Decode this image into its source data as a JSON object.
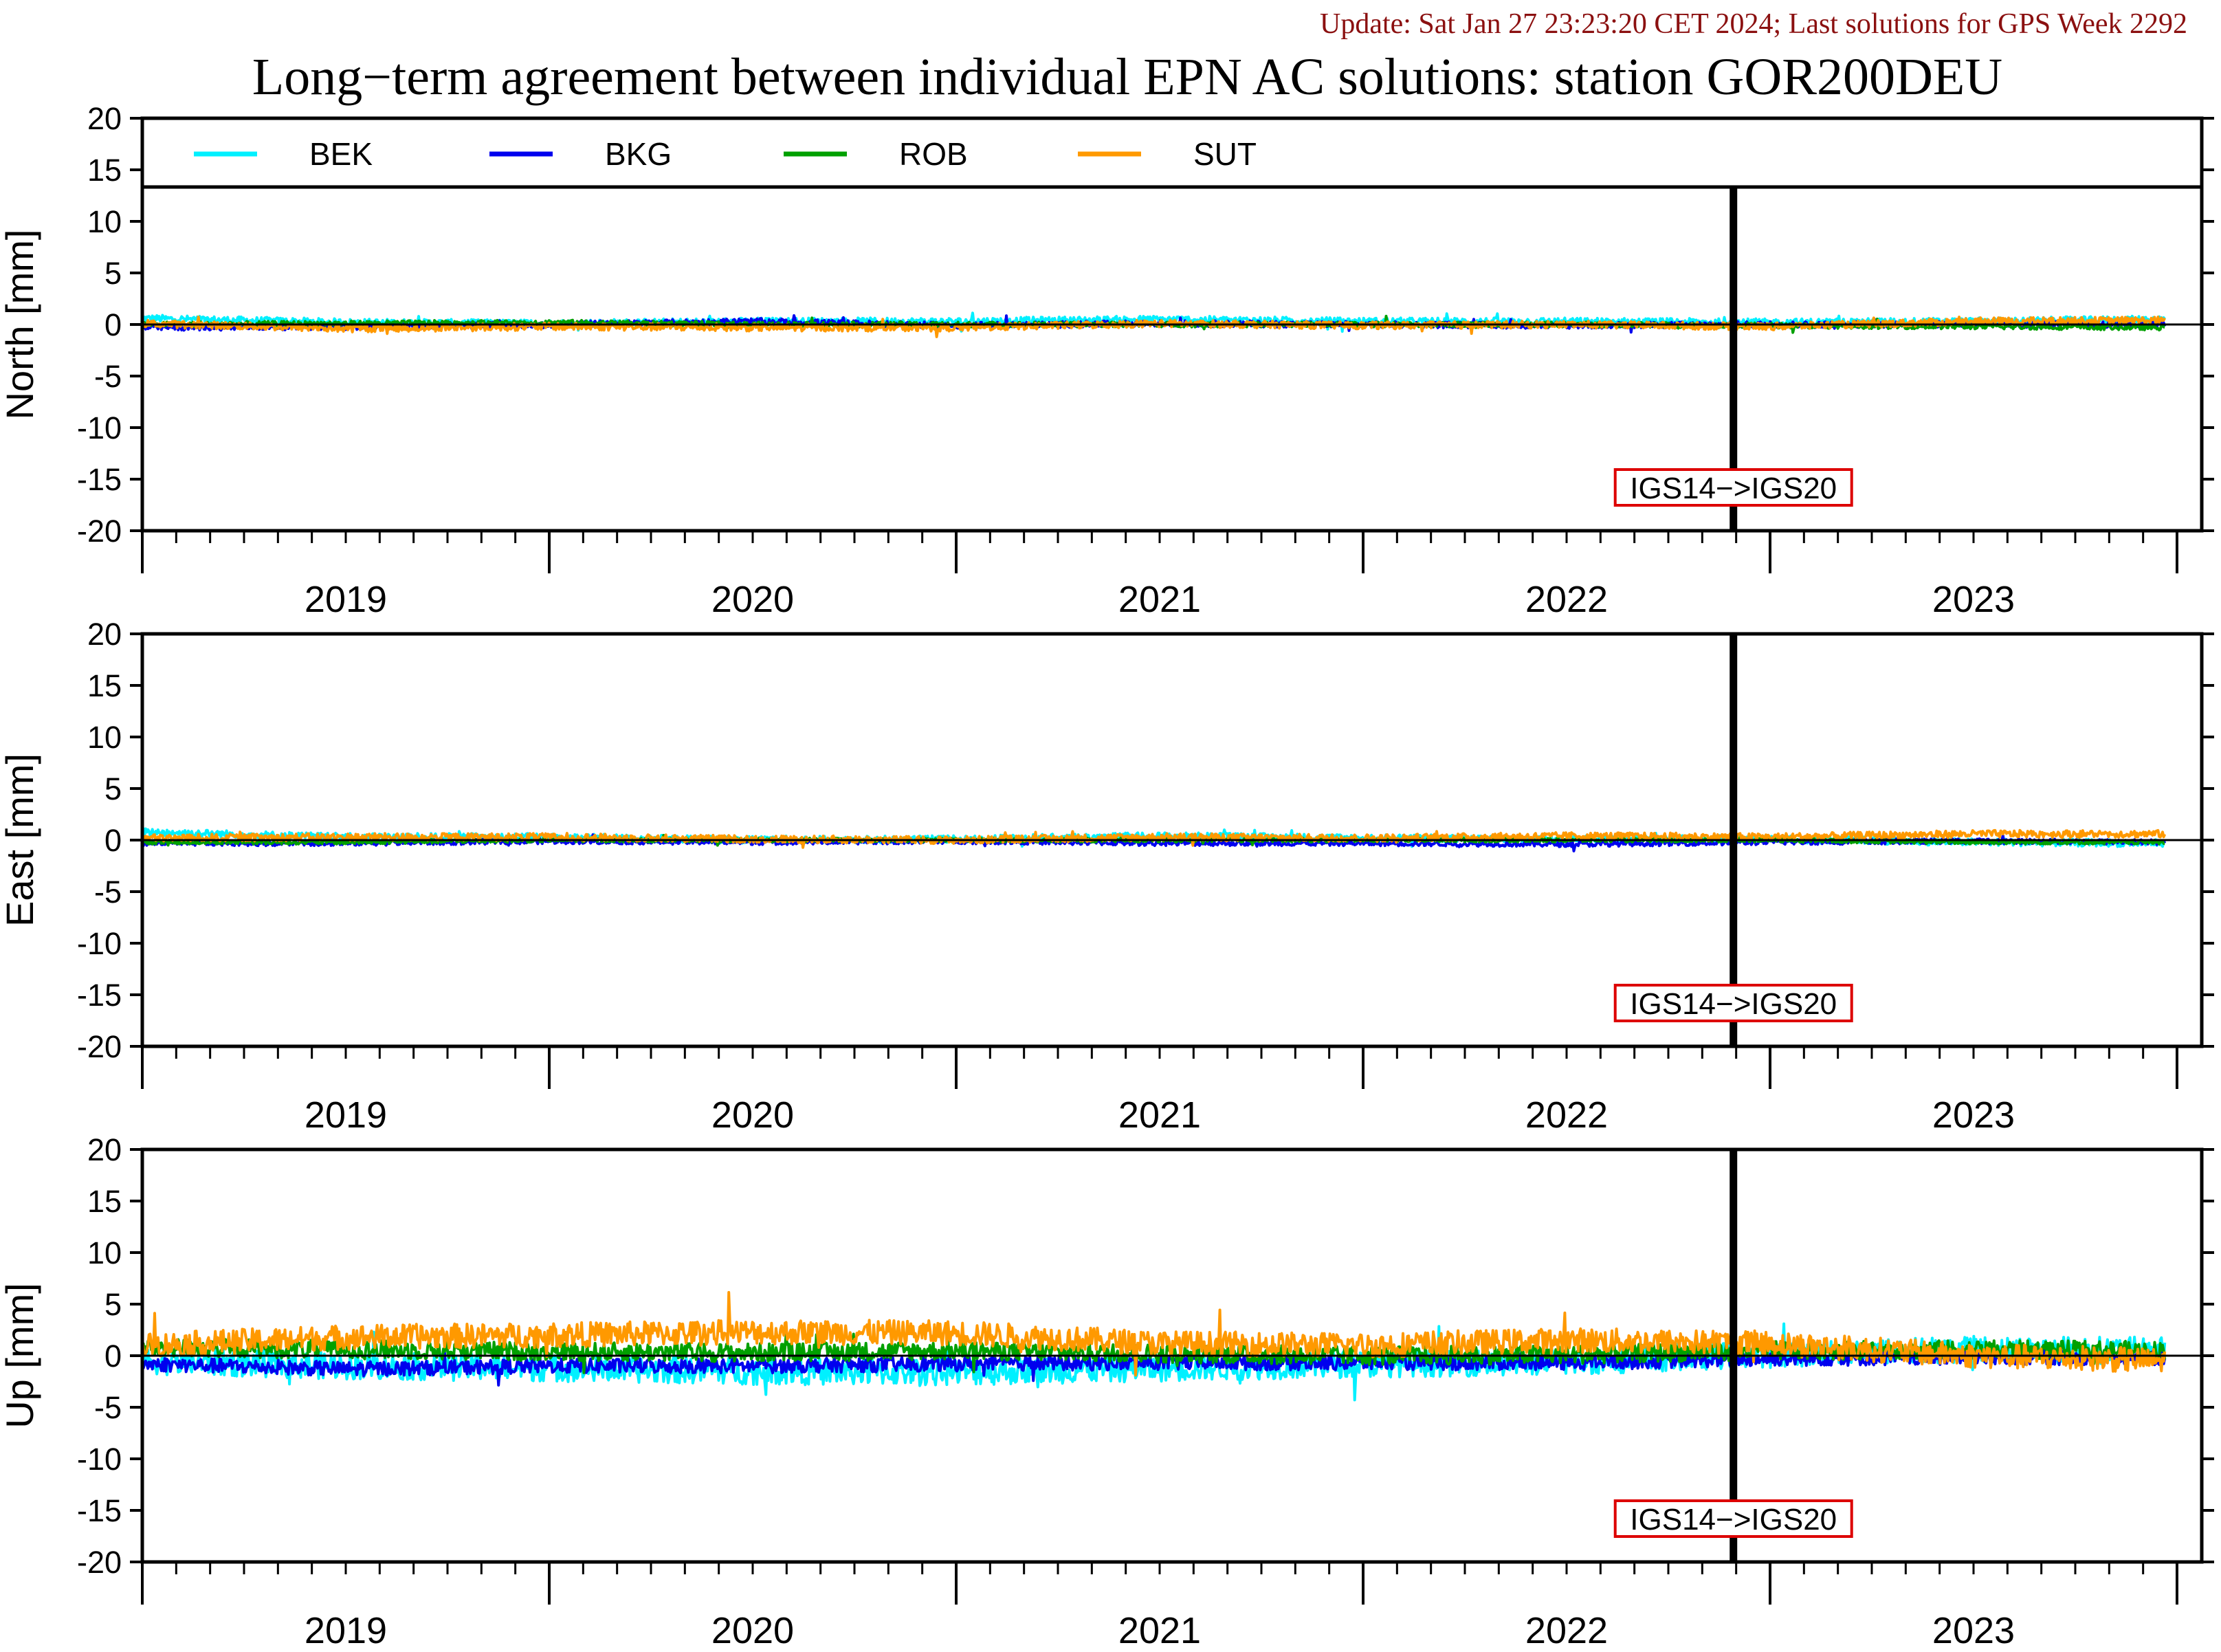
{
  "update_text": "Update: Sat Jan 27 23:23:20 CET 2024; Last solutions for GPS Week 2292",
  "chart_data": {
    "type": "line",
    "title": "Long−term agreement between individual EPN AC solutions: station GOR200DEU",
    "x_range": [
      2018.5,
      2023.5
    ],
    "x_tick_labels": [
      "2019",
      "2020",
      "2021",
      "2022",
      "2023"
    ],
    "grid": false,
    "legend_placement": "top (inside first panel)",
    "series": [
      {
        "name": "BEK",
        "color": "#00f0ff"
      },
      {
        "name": "BKG",
        "color": "#0000ee"
      },
      {
        "name": "ROB",
        "color": "#00a000"
      },
      {
        "name": "SUT",
        "color": "#ff9900"
      }
    ],
    "event": {
      "label": "IGS14−>IGS20",
      "x": 2022.41,
      "box_color": "#dd0000"
    },
    "panels": [
      {
        "ylabel": "North [mm]",
        "ylim": [
          -20,
          20
        ],
        "y_ticks": [
          20,
          15,
          10,
          5,
          0,
          -5,
          -10,
          -15,
          -20
        ],
        "series_values": {
          "BEK": {
            "x": [
              2018.5,
              2019.0,
              2019.5,
              2020.0,
              2020.5,
              2021.0,
              2021.5,
              2022.0,
              2022.5,
              2023.0,
              2023.47
            ],
            "y": [
              0.6,
              0.2,
              0.1,
              0.3,
              0.3,
              0.5,
              0.3,
              0.3,
              0.2,
              0.3,
              0.5
            ]
          },
          "BKG": {
            "x": [
              2018.5,
              2019.0,
              2019.5,
              2020.0,
              2020.5,
              2021.0,
              2021.5,
              2022.0,
              2022.5,
              2023.0,
              2023.47
            ],
            "y": [
              -0.3,
              -0.2,
              0.0,
              0.3,
              -0.1,
              0.1,
              0.0,
              -0.1,
              0.0,
              0.0,
              0.0
            ]
          },
          "ROB": {
            "x": [
              2018.5,
              2019.0,
              2019.5,
              2020.0,
              2020.5,
              2021.0,
              2021.5,
              2022.0,
              2022.5,
              2023.0,
              2023.47
            ],
            "y": [
              0.0,
              0.1,
              0.2,
              0.0,
              0.0,
              0.0,
              0.0,
              0.0,
              -0.1,
              -0.2,
              -0.3
            ]
          },
          "SUT": {
            "x": [
              2018.5,
              2019.0,
              2019.5,
              2020.0,
              2020.5,
              2021.0,
              2021.5,
              2022.0,
              2022.5,
              2023.0,
              2023.47
            ],
            "y": [
              0.1,
              -0.4,
              -0.2,
              -0.3,
              -0.3,
              0.1,
              -0.1,
              0.0,
              -0.2,
              0.3,
              0.4
            ]
          }
        }
      },
      {
        "ylabel": "East [mm]",
        "ylim": [
          -20,
          20
        ],
        "y_ticks": [
          20,
          15,
          10,
          5,
          0,
          -5,
          -10,
          -15,
          -20
        ],
        "series_values": {
          "BEK": {
            "x": [
              2018.5,
              2019.0,
              2019.5,
              2020.0,
              2020.5,
              2021.0,
              2021.5,
              2022.0,
              2022.5,
              2023.0,
              2023.47
            ],
            "y": [
              0.8,
              0.3,
              0.3,
              0.0,
              0.1,
              0.4,
              0.2,
              0.1,
              0.1,
              -0.2,
              -0.3
            ]
          },
          "BKG": {
            "x": [
              2018.5,
              2019.0,
              2019.5,
              2020.0,
              2020.5,
              2021.0,
              2021.5,
              2022.0,
              2022.5,
              2023.0,
              2023.47
            ],
            "y": [
              -0.3,
              -0.3,
              -0.1,
              -0.2,
              -0.1,
              -0.3,
              -0.3,
              -0.4,
              -0.2,
              -0.1,
              -0.2
            ]
          },
          "ROB": {
            "x": [
              2018.5,
              2019.0,
              2019.5,
              2020.0,
              2020.5,
              2021.0,
              2021.5,
              2022.0,
              2022.5,
              2023.0,
              2023.47
            ],
            "y": [
              -0.2,
              -0.2,
              0.0,
              0.0,
              0.0,
              0.0,
              0.0,
              0.0,
              0.0,
              -0.2,
              -0.2
            ]
          },
          "SUT": {
            "x": [
              2018.5,
              2019.0,
              2019.5,
              2020.0,
              2020.5,
              2021.0,
              2021.5,
              2022.0,
              2022.5,
              2023.0,
              2023.47
            ],
            "y": [
              0.2,
              0.3,
              0.3,
              0.1,
              0.0,
              0.3,
              0.2,
              0.4,
              0.3,
              0.6,
              0.6
            ]
          }
        }
      },
      {
        "ylabel": "Up [mm]",
        "ylim": [
          -20,
          20
        ],
        "y_ticks": [
          20,
          15,
          10,
          5,
          0,
          -5,
          -10,
          -15,
          -20
        ],
        "series_values": {
          "BEK": {
            "x": [
              2018.5,
              2019.0,
              2019.5,
              2020.0,
              2020.5,
              2021.0,
              2021.5,
              2022.0,
              2022.5,
              2023.0,
              2023.47
            ],
            "y": [
              -0.5,
              -1.0,
              -1.2,
              -1.5,
              -1.6,
              -1.2,
              -0.8,
              -0.6,
              0.2,
              0.6,
              0.5
            ]
          },
          "BKG": {
            "x": [
              2018.5,
              2019.0,
              2019.5,
              2020.0,
              2020.5,
              2021.0,
              2021.5,
              2022.0,
              2022.5,
              2023.0,
              2023.47
            ],
            "y": [
              -0.8,
              -1.3,
              -1.0,
              -1.0,
              -0.8,
              -0.7,
              -0.7,
              -0.7,
              -0.3,
              -0.2,
              -0.2
            ]
          },
          "ROB": {
            "x": [
              2018.5,
              2019.0,
              2019.5,
              2020.0,
              2020.5,
              2021.0,
              2021.5,
              2022.0,
              2022.5,
              2023.0,
              2023.47
            ],
            "y": [
              0.8,
              0.6,
              0.4,
              0.3,
              0.5,
              0.2,
              0.0,
              0.1,
              0.5,
              0.6,
              0.5
            ]
          },
          "SUT": {
            "x": [
              2018.5,
              2019.0,
              2019.5,
              2020.0,
              2020.5,
              2021.0,
              2021.5,
              2022.0,
              2022.5,
              2023.0,
              2023.47
            ],
            "y": [
              1.0,
              1.8,
              2.0,
              2.3,
              2.2,
              1.2,
              1.0,
              1.5,
              1.2,
              0.0,
              -0.5
            ]
          }
        }
      }
    ]
  }
}
